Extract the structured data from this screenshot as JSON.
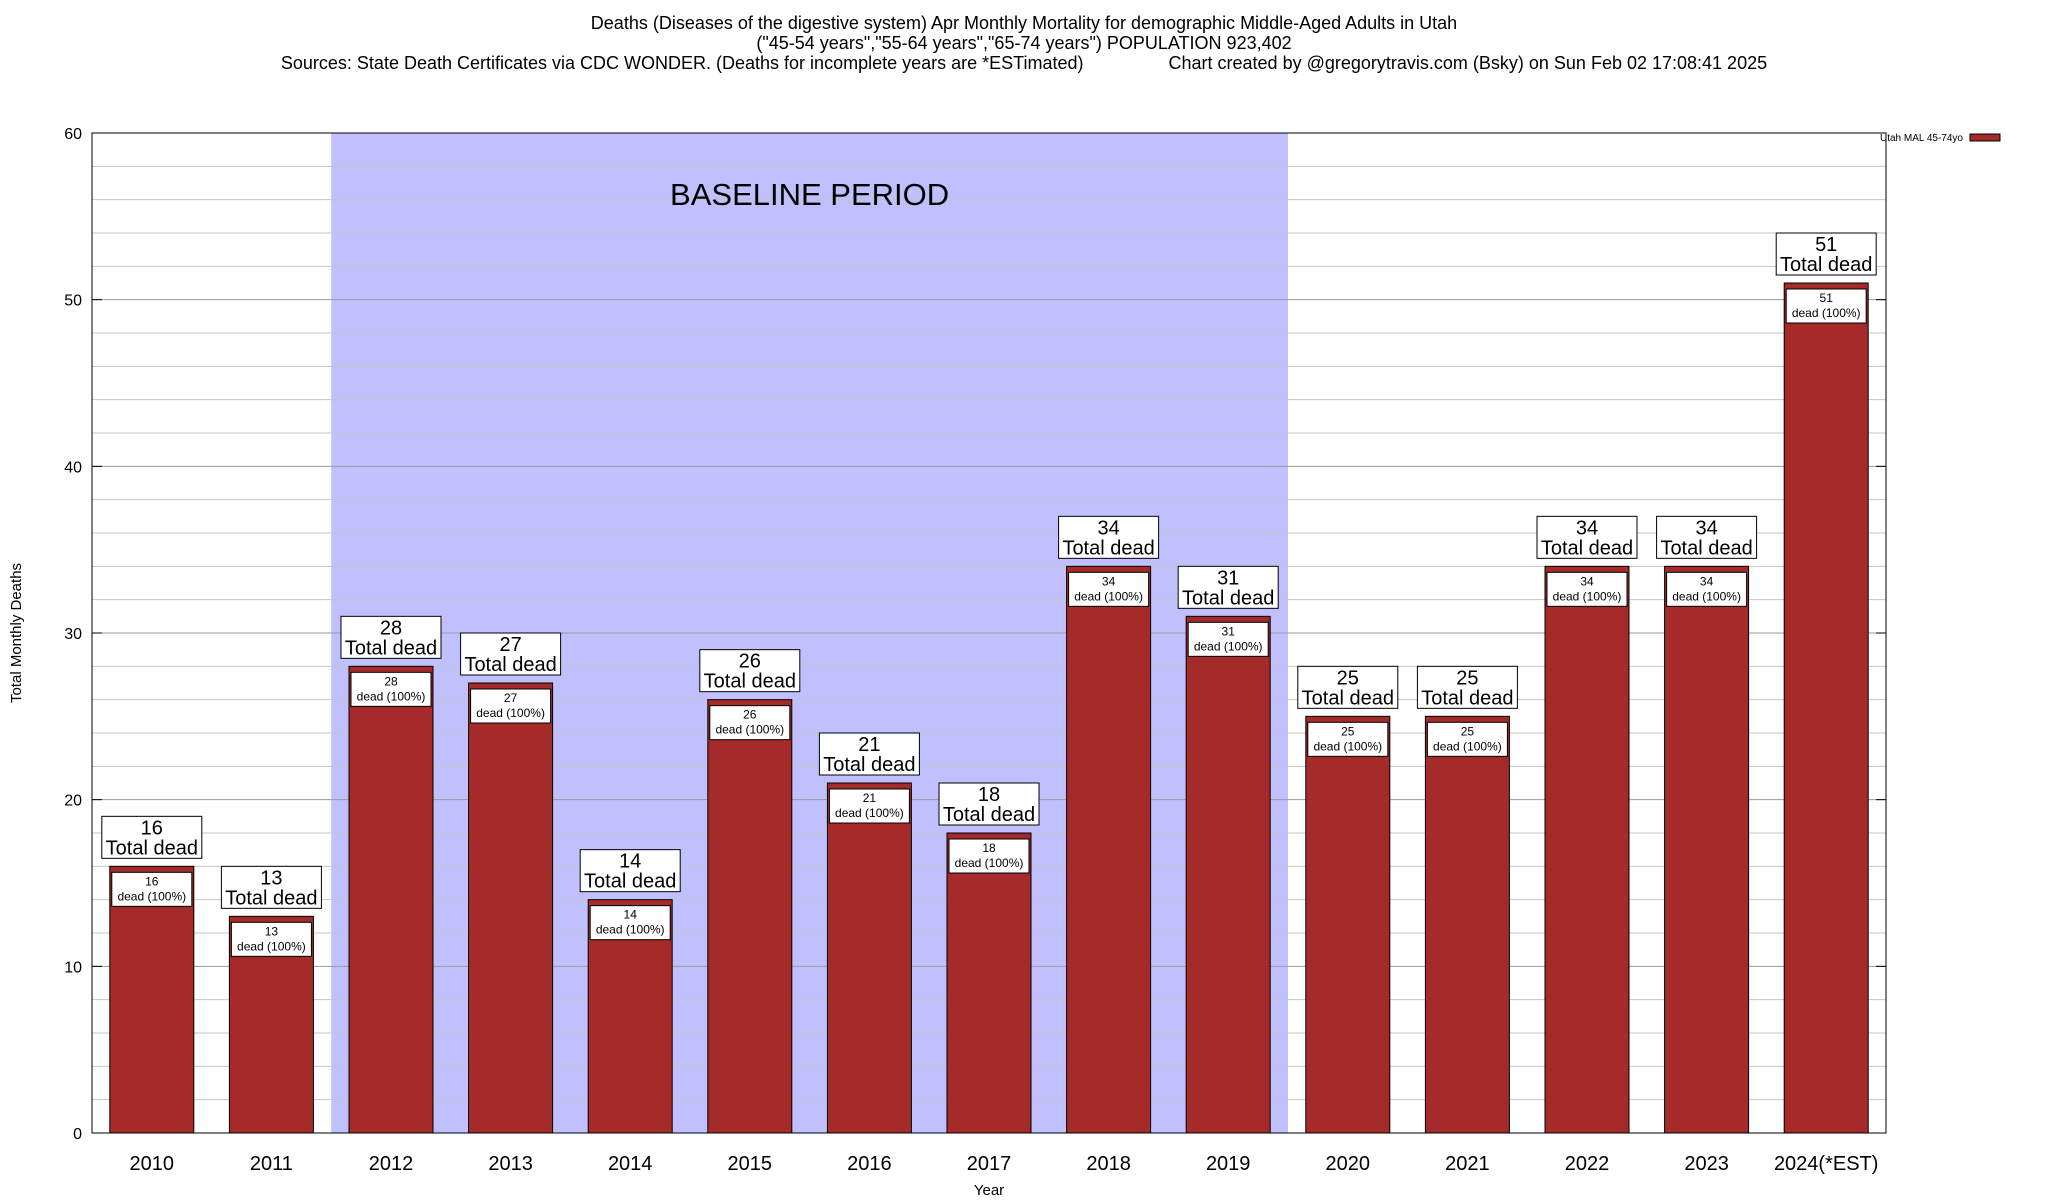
{
  "title_lines": [
    "Deaths (Diseases of the digestive system) Apr Monthly Mortality for demographic Middle-Aged Adults in Utah",
    "(\"45-54 years\",\"55-64 years\",\"65-74 years\") POPULATION 923,402",
    "Sources: State Death Certificates via CDC WONDER. (Deaths for incomplete years are *ESTimated)                 Chart created by @gregorytravis.com (Bsky) on Sun Feb 02 17:08:41 2025"
  ],
  "chart_data": {
    "type": "bar",
    "xlabel": "Year",
    "ylabel": "Total Monthly Deaths",
    "ylim": [
      0,
      60
    ],
    "yticks": [
      0,
      10,
      20,
      30,
      40,
      50,
      60
    ],
    "minor_step": 2,
    "grid": true,
    "legend_position": "top-right",
    "categories": [
      "2010",
      "2011",
      "2012",
      "2013",
      "2014",
      "2015",
      "2016",
      "2017",
      "2018",
      "2019",
      "2020",
      "2021",
      "2022",
      "2023",
      "2024(*EST)"
    ],
    "series": [
      {
        "name": "Utah MAL 45-74yo",
        "color": "#a52a2a",
        "values": [
          16,
          13,
          28,
          27,
          14,
          26,
          21,
          18,
          34,
          31,
          25,
          25,
          34,
          34,
          51
        ]
      }
    ],
    "top_label_text": "Total dead",
    "inner_label_text": "dead (100%)",
    "baseline": {
      "label": "BASELINE PERIOD",
      "from": "2012",
      "to": "2019",
      "color": "#c0c0ff"
    }
  }
}
